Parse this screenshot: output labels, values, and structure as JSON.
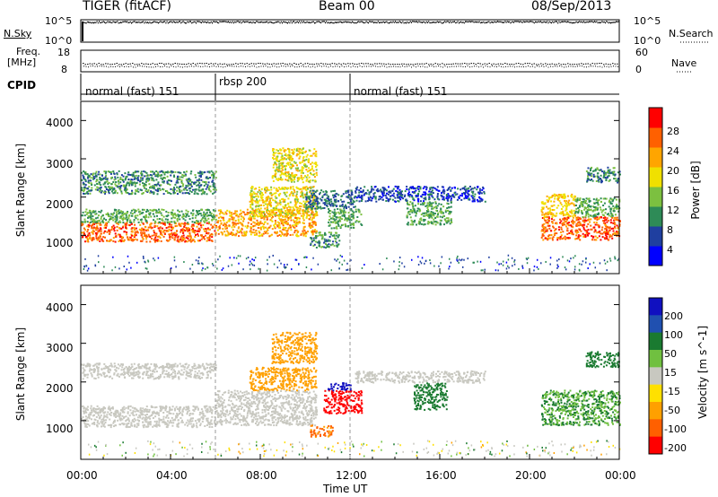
{
  "header": {
    "title": "TIGER (fitACF)",
    "beam": "Beam 00",
    "date": "08/Sep/2013"
  },
  "aux_panels": {
    "nsky": {
      "label": "N.Sky",
      "left_ticks": [
        "10^5",
        "10^0"
      ],
      "right_label": "N.Search",
      "right_ticks": [
        "10^5",
        "10^0"
      ]
    },
    "freq": {
      "label_line1": "Freq.",
      "label_line2": "[MHz]",
      "left_ticks": [
        "18",
        "8"
      ],
      "right_label": "Nave",
      "right_ticks": [
        "60",
        "0"
      ]
    },
    "cpid": {
      "label": "CPID",
      "modes": [
        {
          "label": "normal (fast) 151",
          "start_hour": 0,
          "end_hour": 6
        },
        {
          "label": "rbsp 200",
          "start_hour": 6,
          "end_hour": 12
        },
        {
          "label": "normal (fast) 151",
          "start_hour": 12,
          "end_hour": 24
        }
      ]
    }
  },
  "chart_data": [
    {
      "type": "heatmap",
      "panel": "power",
      "ylabel": "Slant Range [km]",
      "ylim": [
        0,
        4500
      ],
      "yticks": [
        "1000",
        "2000",
        "3000",
        "4000"
      ],
      "colorbar": {
        "label": "Power [dB]",
        "ticks": [
          "4",
          "8",
          "12",
          "16",
          "20",
          "24",
          "28"
        ],
        "colors": [
          "#0000ff",
          "#1f3fa0",
          "#2e8b57",
          "#7cc040",
          "#f0e000",
          "#ffa500",
          "#ff6000",
          "#ff0000"
        ]
      },
      "regions": [
        {
          "x0": 0.0,
          "x1": 6.0,
          "y0": 850,
          "y1": 1350,
          "value": 26
        },
        {
          "x0": 6.0,
          "x1": 10.5,
          "y0": 1000,
          "y1": 1700,
          "value": 22
        },
        {
          "x0": 7.5,
          "x1": 10.5,
          "y0": 1500,
          "y1": 2300,
          "value": 18
        },
        {
          "x0": 0.0,
          "x1": 6.0,
          "y0": 1350,
          "y1": 1700,
          "value": 12
        },
        {
          "x0": 8.5,
          "x1": 10.5,
          "y0": 2400,
          "y1": 3300,
          "value": 18
        },
        {
          "x0": 0.0,
          "x1": 6.0,
          "y0": 2100,
          "y1": 2700,
          "value": 10
        },
        {
          "x0": 10.0,
          "x1": 12.2,
          "y0": 1700,
          "y1": 2200,
          "value": 8
        },
        {
          "x0": 11.0,
          "x1": 12.5,
          "y0": 1200,
          "y1": 1700,
          "value": 12
        },
        {
          "x0": 10.2,
          "x1": 11.5,
          "y0": 700,
          "y1": 1100,
          "value": 10
        },
        {
          "x0": 12.2,
          "x1": 18.0,
          "y0": 1900,
          "y1": 2300,
          "value": 6
        },
        {
          "x0": 14.5,
          "x1": 16.5,
          "y0": 1300,
          "y1": 1900,
          "value": 12
        },
        {
          "x0": 20.5,
          "x1": 24.0,
          "y0": 900,
          "y1": 1500,
          "value": 26
        },
        {
          "x0": 20.5,
          "x1": 22.0,
          "y0": 1500,
          "y1": 2100,
          "value": 20
        },
        {
          "x0": 22.0,
          "x1": 24.0,
          "y0": 1500,
          "y1": 2000,
          "value": 12
        },
        {
          "x0": 22.5,
          "x1": 24.0,
          "y0": 2400,
          "y1": 2800,
          "value": 10
        }
      ]
    },
    {
      "type": "heatmap",
      "panel": "velocity",
      "xlabel": "Time UT",
      "ylabel": "Slant Range [km]",
      "xlim": [
        0,
        24
      ],
      "xticks": [
        "00:00",
        "04:00",
        "08:00",
        "12:00",
        "16:00",
        "20:00",
        "00:00"
      ],
      "ylim": [
        0,
        4500
      ],
      "yticks": [
        "1000",
        "2000",
        "3000",
        "4000"
      ],
      "colorbar": {
        "label": "Velocity [m s^-1]",
        "ticks": [
          "200",
          "100",
          "50",
          "15",
          "-15",
          "-50",
          "-100",
          "-200"
        ],
        "colors": [
          "#1010c0",
          "#2050b0",
          "#1a7a30",
          "#70c040",
          "#c8c8c0",
          "#ffe000",
          "#ffa000",
          "#ff6000",
          "#ff0000"
        ]
      },
      "regions": [
        {
          "x0": 0.0,
          "x1": 6.0,
          "y0": 850,
          "y1": 1400,
          "value": 0
        },
        {
          "x0": 6.0,
          "x1": 10.5,
          "y0": 900,
          "y1": 1800,
          "value": 0
        },
        {
          "x0": 7.5,
          "x1": 10.5,
          "y0": 1800,
          "y1": 2400,
          "value": -40
        },
        {
          "x0": 8.5,
          "x1": 10.5,
          "y0": 2500,
          "y1": 3300,
          "value": -60
        },
        {
          "x0": 0.0,
          "x1": 6.0,
          "y0": 2100,
          "y1": 2500,
          "value": 0
        },
        {
          "x0": 10.8,
          "x1": 12.5,
          "y0": 1200,
          "y1": 1800,
          "value": -200
        },
        {
          "x0": 11.0,
          "x1": 12.0,
          "y0": 1800,
          "y1": 2000,
          "value": 200
        },
        {
          "x0": 10.2,
          "x1": 11.2,
          "y0": 600,
          "y1": 900,
          "value": -80
        },
        {
          "x0": 12.2,
          "x1": 18.0,
          "y0": 2000,
          "y1": 2300,
          "value": 0
        },
        {
          "x0": 14.8,
          "x1": 16.3,
          "y0": 1300,
          "y1": 2000,
          "value": 40
        },
        {
          "x0": 20.5,
          "x1": 24.0,
          "y0": 900,
          "y1": 1800,
          "value": 30
        },
        {
          "x0": 22.5,
          "x1": 24.0,
          "y0": 2400,
          "y1": 2800,
          "value": 40
        }
      ]
    }
  ]
}
